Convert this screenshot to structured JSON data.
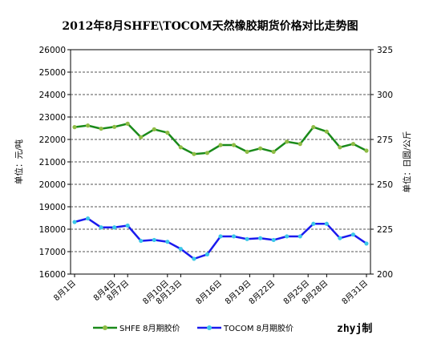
{
  "chart_data": {
    "type": "line",
    "title": "2012年8月SHFE\\TOCOM天然橡胶期货价格对比走势图",
    "ylabel_left": "单位：元/吨",
    "ylabel_right": "单位：日圆/公斤",
    "ylim_left": [
      16000,
      26000
    ],
    "yticks_left": [
      16000,
      17000,
      18000,
      19000,
      20000,
      21000,
      22000,
      23000,
      24000,
      25000,
      26000
    ],
    "ylim_right": [
      200,
      325
    ],
    "yticks_right": [
      200,
      225,
      250,
      275,
      300,
      325
    ],
    "grid": true,
    "legend_position": "bottom",
    "watermark": "zhyj制",
    "x": [
      "8月1日",
      "8月2日",
      "8月3日",
      "8月4日",
      "8月7日",
      "8月8日",
      "8月9日",
      "8月10日",
      "8月13日",
      "8月14日",
      "8月15日",
      "8月16日",
      "8月17日",
      "8月20日",
      "8月21日",
      "8月22日",
      "8月23日",
      "8月24日",
      "8月27日",
      "8月28日",
      "8月29日",
      "8月30日",
      "8月31日"
    ],
    "xtick_labels": [
      "8月1日",
      "8月4日",
      "8月7日",
      "8月10日",
      "8月13日",
      "8月16日",
      "8月19日",
      "8月22日",
      "8月25日",
      "8月28日",
      "8月31日"
    ],
    "series": [
      {
        "name": "SHFE 8月期胶价",
        "axis": "left",
        "color": "#1a8a1a",
        "marker_color": "#8fbc45",
        "values": [
          22550,
          22620,
          22480,
          22560,
          22700,
          22100,
          22450,
          22300,
          21650,
          21350,
          21400,
          21750,
          21750,
          21450,
          21600,
          21450,
          21900,
          21800,
          22550,
          22350,
          21650,
          21800,
          21500
        ]
      },
      {
        "name": "TOCOM 8月期胶价",
        "axis": "right",
        "color": "#1a1aee",
        "marker_color": "#3cc8e8",
        "values": [
          229,
          231,
          226,
          226,
          227,
          218.5,
          219,
          218,
          214,
          208.5,
          211,
          221,
          221,
          219.5,
          220,
          219,
          221,
          221,
          228,
          228,
          220,
          222,
          217
        ]
      }
    ]
  }
}
